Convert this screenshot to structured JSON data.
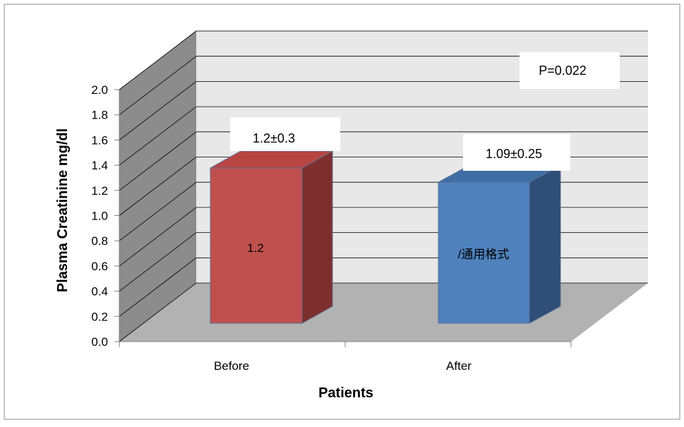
{
  "chart_data": {
    "type": "bar",
    "categories": [
      "Before",
      "After"
    ],
    "values": [
      1.2,
      1.09
    ],
    "xlabel": "Patients",
    "ylabel": "Plasma Creatinine mg/dl",
    "ylim": [
      0,
      2.0
    ],
    "yticks": [
      "0.0",
      "0.2",
      "0.4",
      "0.6",
      "0.8",
      "1.0",
      "1.2",
      "1.4",
      "1.6",
      "1.8",
      "2.0"
    ],
    "grid": true,
    "legend": "none",
    "bar_colors": [
      "#c0504d",
      "#4f81bd"
    ],
    "bar_labels": [
      "1.2",
      "/通用格式"
    ],
    "annotations": {
      "before_value": "1.2±0.3",
      "after_value": "1.09±0.25",
      "p_value": "P=0.022"
    }
  }
}
